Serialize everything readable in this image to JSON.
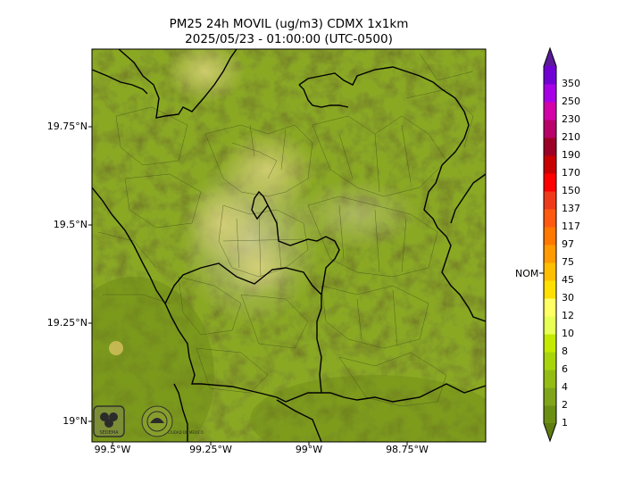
{
  "title": {
    "line1": "PM25 24h MOVIL (ug/m3) CDMX 1x1km",
    "line2": "2025/05/23 - 01:00:00 (UTC-0500)"
  },
  "map": {
    "lat_ticks": [
      "19.75°N",
      "19.5°N",
      "19.25°N",
      "19°N"
    ],
    "lon_ticks": [
      "99.5°W",
      "99.25°W",
      "99°W",
      "98.75°W"
    ],
    "logos": [
      "SEDEMA",
      "CIUDAD DE MÉXICO"
    ]
  },
  "colorbar": {
    "reference_label": "NOM",
    "levels": [
      "1",
      "2",
      "4",
      "6",
      "8",
      "10",
      "12",
      "30",
      "45",
      "75",
      "97",
      "117",
      "137",
      "150",
      "170",
      "190",
      "210",
      "230",
      "250",
      "350"
    ],
    "colors": [
      "#6b8f12",
      "#7fa61a",
      "#93bd15",
      "#a8d40c",
      "#c3ea00",
      "#e8ff55",
      "#ffff66",
      "#ffe000",
      "#ffbf00",
      "#ff9a00",
      "#ff7800",
      "#ff5a10",
      "#ee3a1a",
      "#ff0000",
      "#c80000",
      "#9c0026",
      "#b8006b",
      "#d400a8",
      "#a800e6",
      "#7000d4"
    ],
    "under_color": "#5e7c10",
    "over_color": "#5a1a9a"
  }
}
